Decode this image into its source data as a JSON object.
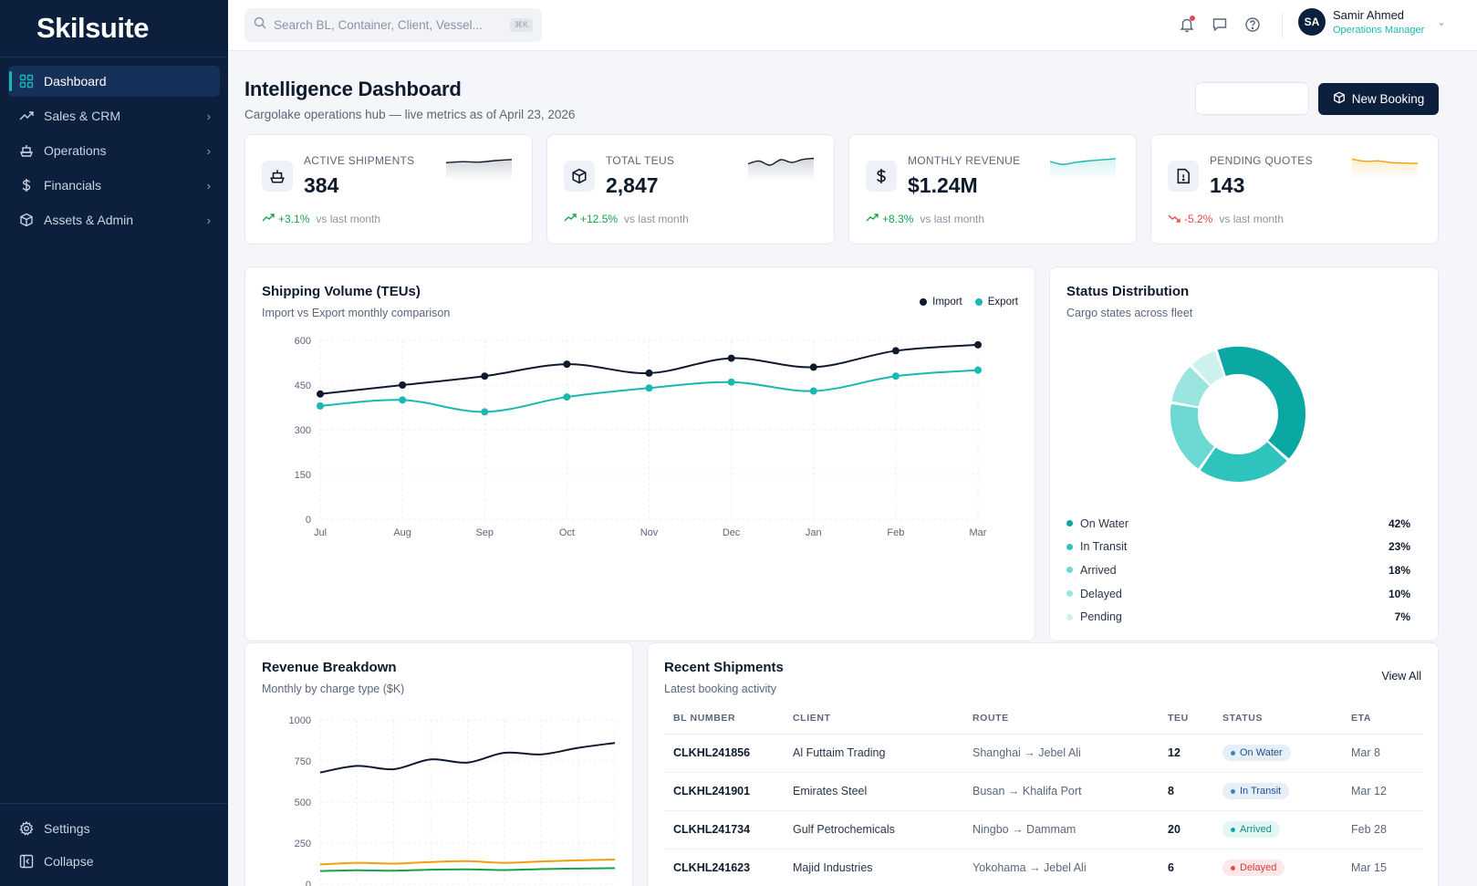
{
  "brand": "Skilsuite",
  "nav": {
    "items": [
      {
        "label": "Dashboard",
        "icon": "grid-icon",
        "active": true
      },
      {
        "label": "Sales & CRM",
        "icon": "trending-up-icon"
      },
      {
        "label": "Operations",
        "icon": "ship-icon"
      },
      {
        "label": "Financials",
        "icon": "dollar-icon"
      },
      {
        "label": "Assets & Admin",
        "icon": "cube-icon"
      }
    ],
    "bottom": [
      {
        "label": "Settings",
        "icon": "gear-icon"
      },
      {
        "label": "Collapse",
        "icon": "collapse-icon"
      }
    ]
  },
  "search": {
    "placeholder": "Search BL, Container, Client, Vessel...",
    "shortcut": "⌘K"
  },
  "user": {
    "initials": "SA",
    "name": "Samir Ahmed",
    "role": "Operations Manager"
  },
  "page": {
    "title": "Intelligence Dashboard",
    "subtitle": "Cargolake operations hub — live metrics as of April 23, 2026",
    "new_booking": "New Booking"
  },
  "kpis": [
    {
      "label": "ACTIVE SHIPMENTS",
      "value": "384",
      "change": "+3.1%",
      "direction": "up",
      "vs": "vs last month",
      "icon": "ship-icon",
      "spark_color": "#0f1b2d",
      "spark": [
        5,
        5.2,
        5.1,
        5.4,
        5.6
      ]
    },
    {
      "label": "TOTAL TEUS",
      "value": "2,847",
      "change": "+12.5%",
      "direction": "up",
      "vs": "vs last month",
      "icon": "cube-icon",
      "spark_color": "#0f1b2d",
      "spark": [
        4,
        5,
        3.5,
        5.5,
        4.5,
        5.6,
        6
      ]
    },
    {
      "label": "MONTHLY REVENUE",
      "value": "$1.24M",
      "change": "+8.3%",
      "direction": "up",
      "vs": "vs last month",
      "icon": "dollar-icon",
      "spark_color": "#19b8b0",
      "spark": [
        5,
        4.2,
        4.8,
        5.2,
        5.5,
        5.8
      ]
    },
    {
      "label": "PENDING QUOTES",
      "value": "143",
      "change": "-5.2%",
      "direction": "down",
      "vs": "vs last month",
      "icon": "file-icon",
      "spark_color": "#f59e0b",
      "spark": [
        6,
        5.5,
        5.6,
        5.2,
        5.1,
        5
      ]
    }
  ],
  "shipping": {
    "title": "Shipping Volume (TEUs)",
    "subtitle": "Import vs Export monthly comparison",
    "legend": [
      {
        "name": "Import",
        "color": "#0f1b2d"
      },
      {
        "name": "Export",
        "color": "#19b8b0"
      }
    ]
  },
  "status": {
    "title": "Status Distribution",
    "subtitle": "Cargo states across fleet",
    "items": [
      {
        "label": "On Water",
        "pct": "42%",
        "value": 42,
        "color": "#0aa7a3"
      },
      {
        "label": "In Transit",
        "pct": "23%",
        "value": 23,
        "color": "#2ec4bd"
      },
      {
        "label": "Arrived",
        "pct": "18%",
        "value": 18,
        "color": "#6bd8d2"
      },
      {
        "label": "Delayed",
        "pct": "10%",
        "value": 10,
        "color": "#9be5e0"
      },
      {
        "label": "Pending",
        "pct": "7%",
        "value": 7,
        "color": "#cdf1ef"
      }
    ]
  },
  "revenue": {
    "title": "Revenue Breakdown",
    "subtitle": "Monthly by charge type ($K)"
  },
  "shipments": {
    "title": "Recent Shipments",
    "subtitle": "Latest booking activity",
    "view_all": "View All",
    "columns": [
      "BL NUMBER",
      "CLIENT",
      "ROUTE",
      "TEU",
      "STATUS",
      "ETA"
    ],
    "rows": [
      {
        "bl": "CLKHL241856",
        "client": "Al Futtaim Trading",
        "route": "Shanghai → Jebel Ali",
        "teu": "12",
        "status": "On Water",
        "status_class": "b-water",
        "eta": "Mar 8"
      },
      {
        "bl": "CLKHL241901",
        "client": "Emirates Steel",
        "route": "Busan → Khalifa Port",
        "teu": "8",
        "status": "In Transit",
        "status_class": "b-transit",
        "eta": "Mar 12"
      },
      {
        "bl": "CLKHL241734",
        "client": "Gulf Petrochemicals",
        "route": "Ningbo → Dammam",
        "teu": "20",
        "status": "Arrived",
        "status_class": "b-arrived",
        "eta": "Feb 28"
      },
      {
        "bl": "CLKHL241623",
        "client": "Majid Industries",
        "route": "Yokohama → Jebel Ali",
        "teu": "6",
        "status": "Delayed",
        "status_class": "b-delayed",
        "eta": "Mar 15"
      }
    ]
  },
  "chart_data": [
    {
      "type": "line",
      "x": [
        "Jul",
        "Aug",
        "Sep",
        "Oct",
        "Nov",
        "Dec",
        "Jan",
        "Feb",
        "Mar"
      ],
      "ylim": [
        0,
        600
      ],
      "yticks": [
        0,
        150,
        300,
        450,
        600
      ],
      "grid": true,
      "legend": "top-right",
      "series": [
        {
          "name": "Import",
          "color": "#0f1b2d",
          "values": [
            420,
            450,
            480,
            520,
            490,
            540,
            510,
            565,
            585
          ]
        },
        {
          "name": "Export",
          "color": "#19b8b0",
          "values": [
            380,
            400,
            360,
            410,
            440,
            460,
            430,
            480,
            500
          ]
        }
      ]
    },
    {
      "type": "pie",
      "categories": [
        "On Water",
        "In Transit",
        "Arrived",
        "Delayed",
        "Pending"
      ],
      "values": [
        42,
        23,
        18,
        10,
        7
      ]
    },
    {
      "type": "line",
      "ylim": [
        0,
        1000
      ],
      "yticks": [
        0,
        250,
        500,
        750,
        1000
      ],
      "grid": true,
      "series": [
        {
          "color": "#0f1b2d",
          "values": [
            680,
            720,
            700,
            760,
            740,
            800,
            790,
            830,
            860
          ]
        },
        {
          "color": "#f59e0b",
          "values": [
            120,
            130,
            125,
            135,
            140,
            130,
            138,
            145,
            150
          ]
        },
        {
          "color": "#16a34a",
          "values": [
            80,
            85,
            82,
            88,
            90,
            86,
            92,
            95,
            98
          ]
        }
      ]
    }
  ]
}
